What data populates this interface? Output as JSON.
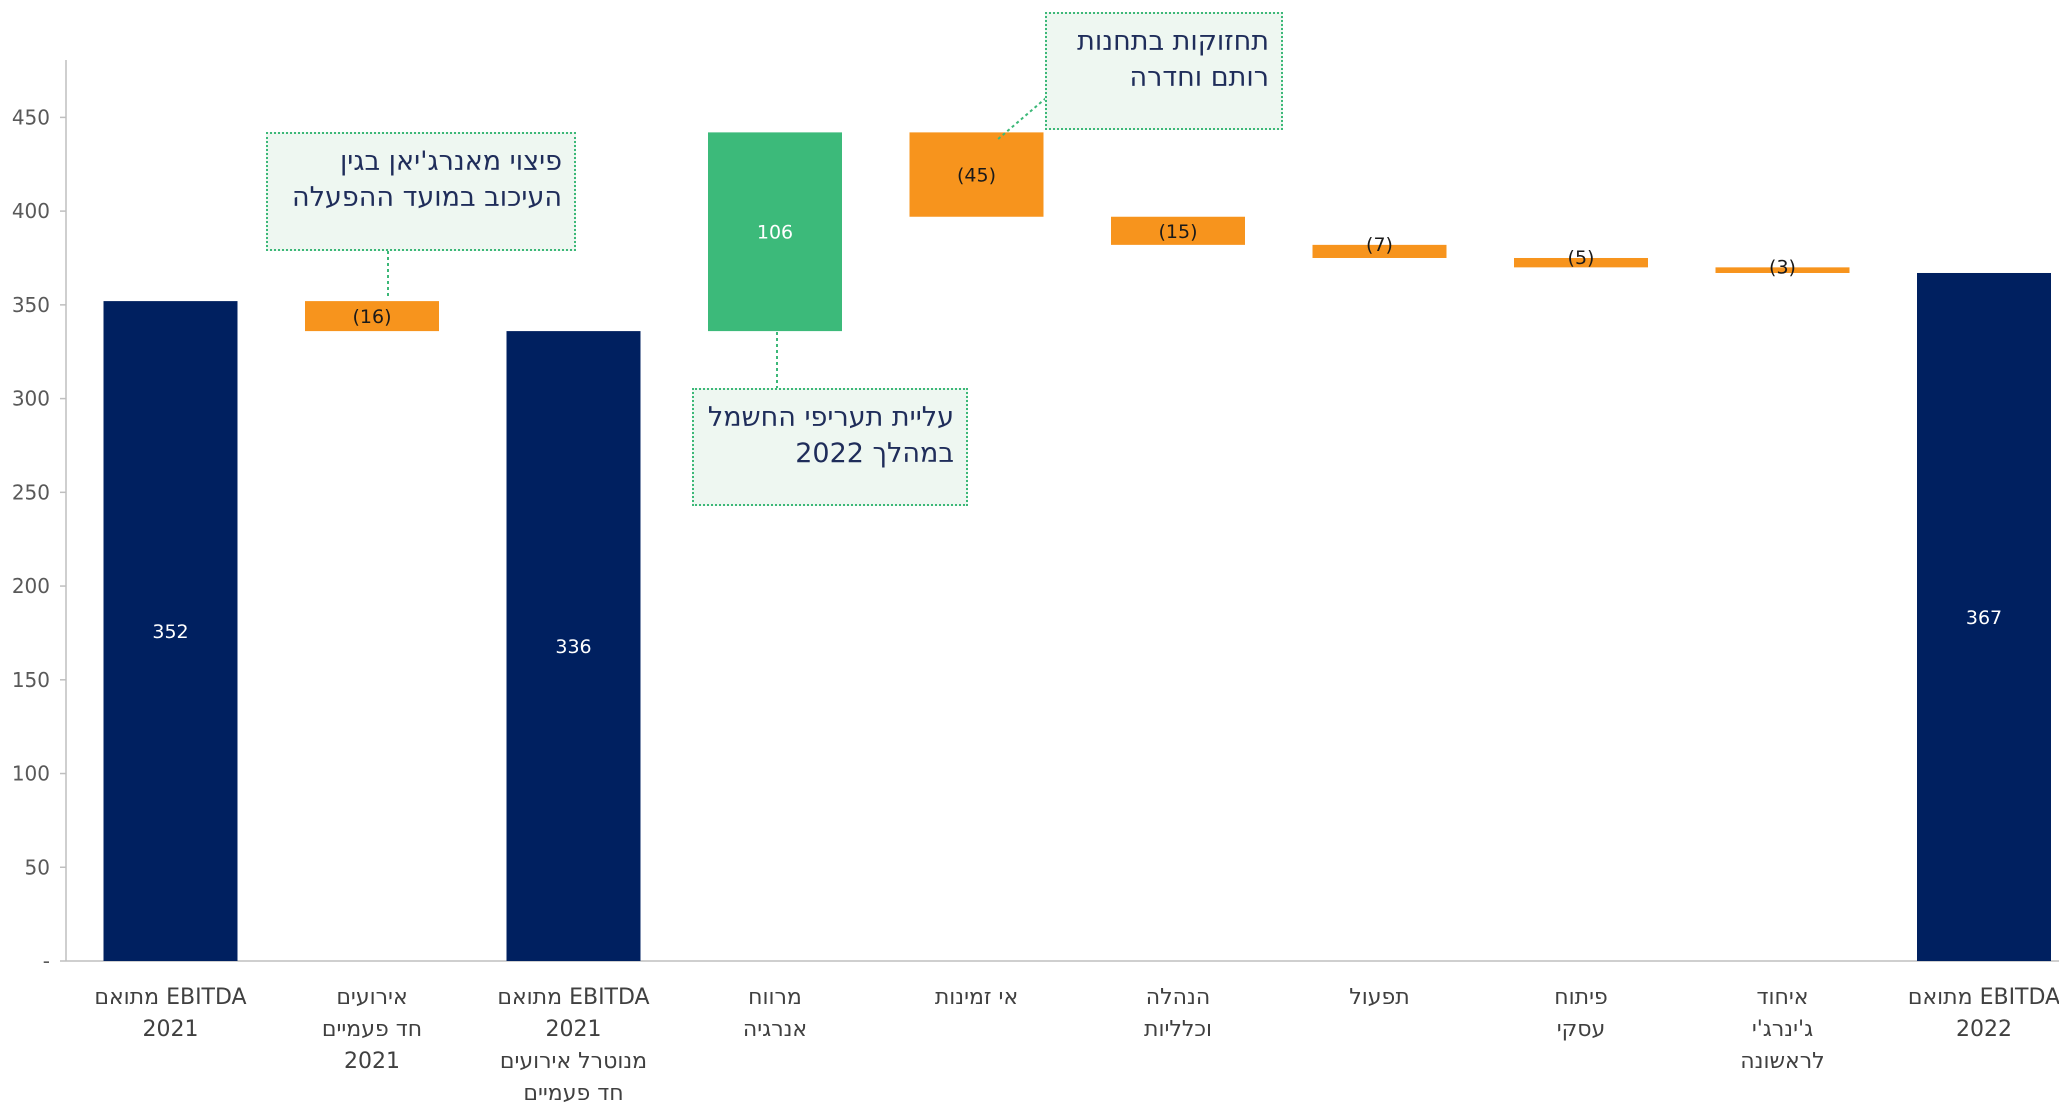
{
  "colors": {
    "total": "#002060",
    "decrease": "#f7941d",
    "increase": "#3cba7a",
    "callout_border": "#3cb878",
    "callout_bg": "#eef7f1",
    "callout_text": "#1f2d5a"
  },
  "chart_data": {
    "type": "bar",
    "subtype": "waterfall",
    "ylim": [
      0,
      480
    ],
    "yticks": [
      {
        "value": 0,
        "label": "-"
      },
      {
        "value": 50,
        "label": "50"
      },
      {
        "value": 100,
        "label": "100"
      },
      {
        "value": 150,
        "label": "150"
      },
      {
        "value": 200,
        "label": "200"
      },
      {
        "value": 250,
        "label": "250"
      },
      {
        "value": 300,
        "label": "300"
      },
      {
        "value": 350,
        "label": "350"
      },
      {
        "value": 400,
        "label": "400"
      },
      {
        "value": 450,
        "label": "450"
      }
    ],
    "bars": [
      {
        "lines": [
          "EBITDA מתואם",
          "2021"
        ],
        "kind": "total",
        "start": 0,
        "end": 352,
        "label": "352"
      },
      {
        "lines": [
          "אירועים",
          "חד פעמיים",
          "2021"
        ],
        "kind": "decrease",
        "start": 352,
        "end": 336,
        "label": "(16)"
      },
      {
        "lines": [
          "EBITDA מתואם",
          "2021",
          "מנוטרל אירועים",
          "חד פעמיים"
        ],
        "kind": "total",
        "start": 0,
        "end": 336,
        "label": "336"
      },
      {
        "lines": [
          "מרווח",
          "אנרגיה"
        ],
        "kind": "increase",
        "start": 336,
        "end": 442,
        "label": "106"
      },
      {
        "lines": [
          "אי זמינות"
        ],
        "kind": "decrease",
        "start": 442,
        "end": 397,
        "label": "(45)"
      },
      {
        "lines": [
          "הנהלה",
          "וכלליות"
        ],
        "kind": "decrease",
        "start": 397,
        "end": 382,
        "label": "(15)"
      },
      {
        "lines": [
          "תפעול"
        ],
        "kind": "decrease",
        "start": 382,
        "end": 375,
        "label": "(7)"
      },
      {
        "lines": [
          "פיתוח",
          "עסקי"
        ],
        "kind": "decrease",
        "start": 375,
        "end": 370,
        "label": "(5)"
      },
      {
        "lines": [
          "איחוד",
          "ג'ינרג'י",
          "לראשונה"
        ],
        "kind": "decrease",
        "start": 370,
        "end": 367,
        "label": "(3)"
      },
      {
        "lines": [
          "EBITDA מתואם",
          "2022"
        ],
        "kind": "total",
        "start": 0,
        "end": 367,
        "label": "367"
      }
    ],
    "annotations": [
      {
        "id": "compensation",
        "bar_index": 1,
        "lines": [
          "פיצוי מאנרג'יאן בגין",
          "העיכוב במועד ההפעלה"
        ]
      },
      {
        "id": "tariff",
        "bar_index": 3,
        "lines": [
          "עליית תעריפי החשמל",
          "במהלך 2022"
        ]
      },
      {
        "id": "maintenance",
        "bar_index": 4,
        "lines": [
          "תחזוקות בתחנות",
          "רותם וחדרה"
        ]
      }
    ]
  }
}
